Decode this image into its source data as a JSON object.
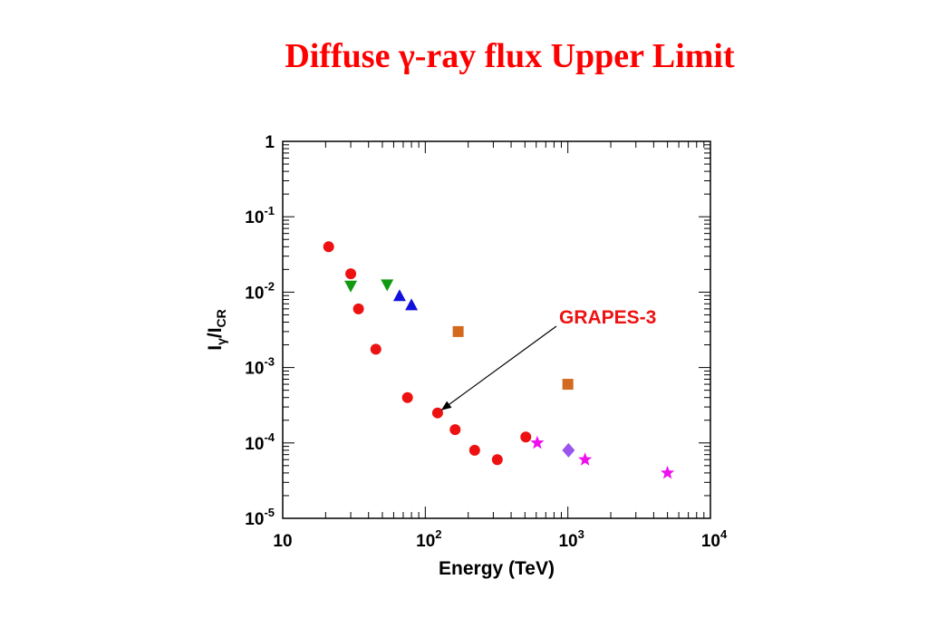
{
  "slide": {
    "title": "Diffuse γ-ray flux Upper Limit"
  },
  "chart_data": {
    "type": "scatter",
    "xlabel": "Energy (TeV)",
    "ylabel_main": "I",
    "ylabel_sub1": "γ",
    "ylabel_slash": "/I",
    "ylabel_sub2": "CR",
    "xscale": "log",
    "yscale": "log",
    "xlim": [
      10,
      10000
    ],
    "ylim": [
      1e-05,
      1
    ],
    "grid": false,
    "legend": "none",
    "x_ticks": [
      {
        "value": 10,
        "base": "10",
        "exp": ""
      },
      {
        "value": 100,
        "base": "10",
        "exp": "2"
      },
      {
        "value": 1000,
        "base": "10",
        "exp": "3"
      },
      {
        "value": 10000,
        "base": "10",
        "exp": "4"
      }
    ],
    "y_ticks": [
      {
        "value": 1,
        "base": "1",
        "exp": ""
      },
      {
        "value": 0.1,
        "base": "10",
        "exp": "-1"
      },
      {
        "value": 0.01,
        "base": "10",
        "exp": "-2"
      },
      {
        "value": 0.001,
        "base": "10",
        "exp": "-3"
      },
      {
        "value": 0.0001,
        "base": "10",
        "exp": "-4"
      },
      {
        "value": 1e-05,
        "base": "10",
        "exp": "-5"
      }
    ],
    "series": [
      {
        "marker": "circle",
        "color": "#ee1111",
        "points": [
          [
            21,
            0.04
          ],
          [
            30,
            0.0175
          ],
          [
            34,
            0.006
          ],
          [
            45,
            0.00175
          ],
          [
            75,
            0.0004
          ],
          [
            122,
            0.00025
          ],
          [
            162,
            0.00015
          ],
          [
            222,
            8e-05
          ],
          [
            320,
            6e-05
          ],
          [
            507,
            0.00012
          ]
        ]
      },
      {
        "marker": "triangle-down",
        "color": "#119911",
        "points": [
          [
            30,
            0.012
          ],
          [
            54,
            0.0125
          ]
        ]
      },
      {
        "marker": "triangle-up",
        "color": "#1111dd",
        "points": [
          [
            66,
            0.009
          ],
          [
            80,
            0.0068
          ]
        ]
      },
      {
        "marker": "square",
        "color": "#d2691e",
        "points": [
          [
            170,
            0.003
          ],
          [
            1000,
            0.0006
          ]
        ]
      },
      {
        "marker": "star",
        "color": "#ee11ee",
        "points": [
          [
            610,
            0.0001
          ],
          [
            1320,
            6e-05
          ],
          [
            5000,
            4e-05
          ]
        ]
      },
      {
        "marker": "diamond",
        "color": "#9955ee",
        "points": [
          [
            1010,
            8e-05
          ]
        ]
      }
    ],
    "annotation": {
      "text": "GRAPES-3",
      "color": "#ee1111",
      "arrow_to": [
        122,
        0.00025
      ]
    }
  }
}
